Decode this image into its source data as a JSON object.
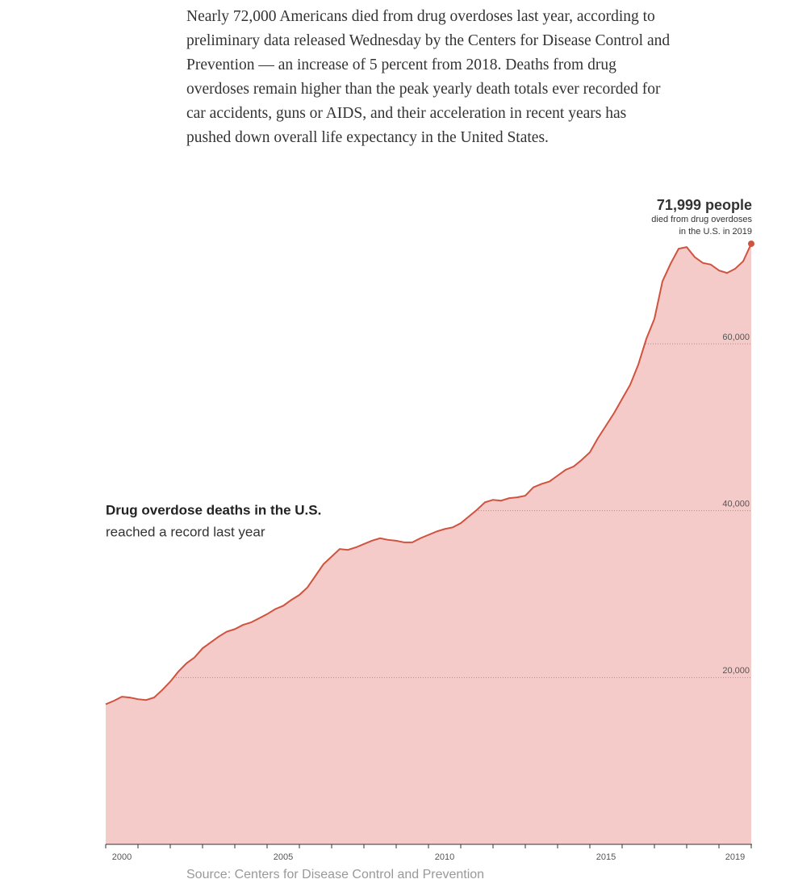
{
  "paragraph": "Nearly 72,000 Americans died from drug overdoses last year, according to preliminary data released Wednesday by the Centers for Disease Control and Prevention — an increase of 5 percent from 2018. Deaths from drug overdoses remain higher than the peak yearly death totals ever recorded for car accidents, guns or AIDS, and their acceleration in recent years has pushed down overall life expectancy in the United States.",
  "chart_data": {
    "type": "area",
    "title": "Drug overdose deaths in the U.S.",
    "subtitle": "reached a record last year",
    "annotation": {
      "title": "71,999 people",
      "lines": [
        "died from drug overdoses",
        "in the U.S. in 2019"
      ]
    },
    "source": "Source: Centers for Disease Control and Prevention",
    "color": "#d0533f",
    "fill": "#f4cbc8",
    "xlim": [
      2000,
      2020
    ],
    "ylim": [
      0,
      80000
    ],
    "yticks": [
      {
        "value": 20000,
        "label": "20,000"
      },
      {
        "value": 40000,
        "label": "40,000"
      },
      {
        "value": 60000,
        "label": "60,000"
      }
    ],
    "xticks": [
      {
        "value": 2000.5,
        "label": "2000"
      },
      {
        "value": 2005.5,
        "label": "2005"
      },
      {
        "value": 2010.5,
        "label": "2010"
      },
      {
        "value": 2015.5,
        "label": "2015"
      },
      {
        "value": 2019.5,
        "label": "2019"
      }
    ],
    "minor_xticks": [
      2000,
      2001,
      2002,
      2003,
      2004,
      2005,
      2006,
      2007,
      2008,
      2009,
      2010,
      2011,
      2012,
      2013,
      2014,
      2015,
      2016,
      2017,
      2018,
      2019,
      2020
    ],
    "grid": true,
    "x": [
      2000,
      2000.25,
      2000.5,
      2000.75,
      2001,
      2001.25,
      2001.5,
      2001.75,
      2002,
      2002.25,
      2002.5,
      2002.75,
      2003,
      2003.25,
      2003.5,
      2003.75,
      2004,
      2004.25,
      2004.5,
      2004.75,
      2005,
      2005.25,
      2005.5,
      2005.75,
      2006,
      2006.25,
      2006.5,
      2006.75,
      2007,
      2007.25,
      2007.5,
      2007.75,
      2008,
      2008.25,
      2008.5,
      2008.75,
      2009,
      2009.25,
      2009.5,
      2009.75,
      2010,
      2010.25,
      2010.5,
      2010.75,
      2011,
      2011.25,
      2011.5,
      2011.75,
      2012,
      2012.25,
      2012.5,
      2012.75,
      2013,
      2013.25,
      2013.5,
      2013.75,
      2014,
      2014.25,
      2014.5,
      2014.75,
      2015,
      2015.25,
      2015.5,
      2015.75,
      2016,
      2016.25,
      2016.5,
      2016.75,
      2017,
      2017.25,
      2017.5,
      2017.75,
      2018,
      2018.25,
      2018.5,
      2018.75,
      2019,
      2019.25,
      2019.5,
      2019.75,
      2020
    ],
    "values": [
      16800,
      17200,
      17700,
      17600,
      17400,
      17300,
      17600,
      18500,
      19500,
      20700,
      21700,
      22400,
      23500,
      24200,
      24900,
      25500,
      25800,
      26300,
      26600,
      27100,
      27600,
      28200,
      28600,
      29300,
      29900,
      30800,
      32200,
      33600,
      34500,
      35400,
      35300,
      35600,
      36000,
      36400,
      36700,
      36500,
      36400,
      36200,
      36200,
      36700,
      37100,
      37500,
      37800,
      38000,
      38500,
      39300,
      40100,
      41000,
      41300,
      41200,
      41500,
      41600,
      41800,
      42800,
      43200,
      43500,
      44200,
      44900,
      45300,
      46100,
      47000,
      48700,
      50200,
      51700,
      53400,
      55100,
      57500,
      60600,
      63000,
      67500,
      69600,
      71400,
      71600,
      70400,
      69700,
      69500,
      68800,
      68500,
      69000,
      69900,
      71999
    ]
  }
}
